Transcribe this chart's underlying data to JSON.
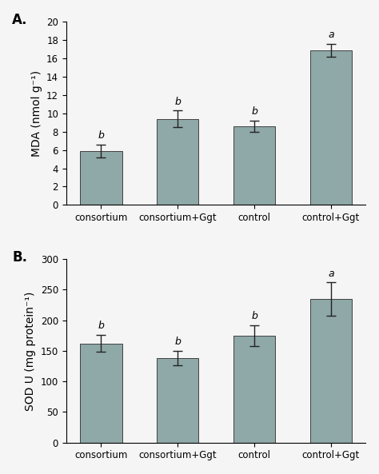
{
  "panel_A": {
    "label": "A.",
    "categories": [
      "consortium",
      "consortium+Ggt",
      "control",
      "control+Ggt"
    ],
    "values": [
      5.9,
      9.4,
      8.6,
      16.9
    ],
    "errors": [
      0.7,
      0.9,
      0.6,
      0.7
    ],
    "sig_labels": [
      "b",
      "b",
      "b",
      "a"
    ],
    "ylabel": "MDA (nmol g⁻¹)",
    "ylim": [
      0,
      20
    ],
    "yticks": [
      0,
      2,
      4,
      6,
      8,
      10,
      12,
      14,
      16,
      18,
      20
    ],
    "bar_color": "#8fa8a8"
  },
  "panel_B": {
    "label": "B.",
    "categories": [
      "consortium",
      "consortium+Ggt",
      "control",
      "control+Ggt"
    ],
    "values": [
      162,
      138,
      175,
      235
    ],
    "errors": [
      14,
      12,
      17,
      27
    ],
    "sig_labels": [
      "b",
      "b",
      "b",
      "a"
    ],
    "ylabel": "SOD U (mg protein⁻¹)",
    "ylim": [
      0,
      300
    ],
    "yticks": [
      0,
      50,
      100,
      150,
      200,
      250,
      300
    ],
    "bar_color": "#8fa8a8"
  },
  "background_color": "#f5f5f5",
  "edge_color": "#404040",
  "error_color": "#222222",
  "sig_label_fontsize": 9,
  "axis_label_fontsize": 10,
  "tick_label_fontsize": 8.5,
  "bar_width": 0.55
}
